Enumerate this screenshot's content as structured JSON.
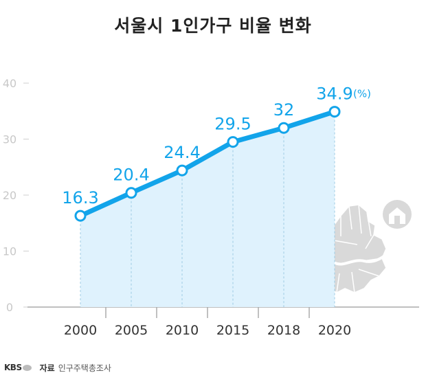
{
  "title": "서울시 1인가구 비율 변화",
  "unit_label": "(%)",
  "footer": {
    "logo": "KBS",
    "source_label": "자료",
    "source_value": "인구주택총조사"
  },
  "colors": {
    "line": "#12a4ea",
    "fill": "#dff2fd",
    "axis": "#bbbbbb",
    "map": "#d9d9d9"
  },
  "chart_data": {
    "type": "line",
    "title": "서울시 1인가구 비율 변화",
    "categories": [
      "2000",
      "2005",
      "2010",
      "2015",
      "2018",
      "2020"
    ],
    "values": [
      16.3,
      20.4,
      24.4,
      29.5,
      32,
      34.9
    ],
    "value_labels": [
      "16.3",
      "20.4",
      "24.4",
      "29.5",
      "32",
      "34.9"
    ],
    "y_ticks": [
      0,
      10,
      20,
      30,
      40
    ],
    "ylim": [
      0,
      40
    ],
    "xlabel": "",
    "ylabel": "",
    "grid": false,
    "area_fill": true
  }
}
